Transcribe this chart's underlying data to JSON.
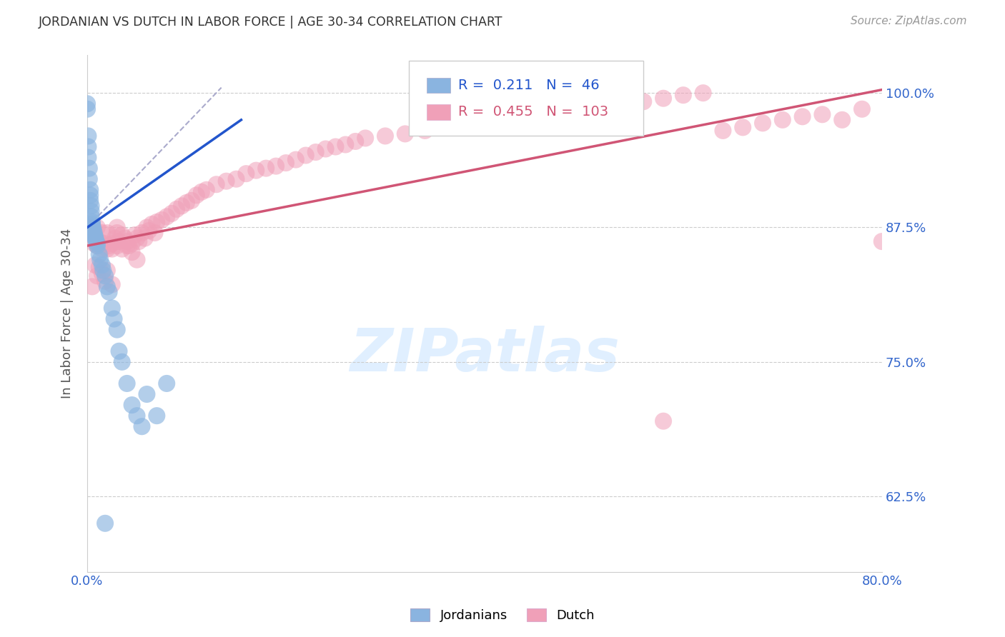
{
  "title": "JORDANIAN VS DUTCH IN LABOR FORCE | AGE 30-34 CORRELATION CHART",
  "source": "Source: ZipAtlas.com",
  "ylabel": "In Labor Force | Age 30-34",
  "legend_jordanians": "Jordanians",
  "legend_dutch": "Dutch",
  "r_jordanians": 0.211,
  "n_jordanians": 46,
  "r_dutch": 0.455,
  "n_dutch": 103,
  "color_jordanians": "#8ab4e0",
  "color_dutch": "#f0a0b8",
  "color_blue_line": "#2255cc",
  "color_pink_line": "#d05575",
  "color_dashed": "#aaaacc",
  "color_grid": "#cccccc",
  "color_title": "#333333",
  "color_source": "#999999",
  "color_axis_labels": "#3366cc",
  "color_ylabel": "#555555",
  "background_color": "#ffffff",
  "watermark_color": "#ddeeff",
  "x_min": 0.0,
  "x_max": 0.8,
  "y_min": 0.555,
  "y_max": 1.035,
  "y_ticks": [
    0.625,
    0.75,
    0.875,
    1.0
  ],
  "y_tick_labels": [
    "62.5%",
    "75.0%",
    "87.5%",
    "100.0%"
  ],
  "x_ticks": [
    0.0,
    0.1,
    0.2,
    0.3,
    0.4,
    0.5,
    0.6,
    0.7,
    0.8
  ],
  "x_tick_labels": [
    "0.0%",
    "",
    "",
    "",
    "",
    "",
    "",
    "",
    "80.0%"
  ],
  "blue_line_x": [
    0.0,
    0.155
  ],
  "blue_line_y": [
    0.875,
    0.975
  ],
  "pink_line_x": [
    0.0,
    0.8
  ],
  "pink_line_y": [
    0.858,
    1.003
  ],
  "dash_line_x": [
    0.0,
    0.135
  ],
  "dash_line_y": [
    0.875,
    1.005
  ],
  "jx": [
    0.0,
    0.0,
    0.001,
    0.001,
    0.001,
    0.002,
    0.002,
    0.003,
    0.003,
    0.003,
    0.004,
    0.004,
    0.004,
    0.005,
    0.005,
    0.005,
    0.005,
    0.006,
    0.006,
    0.007,
    0.007,
    0.008,
    0.008,
    0.009,
    0.01,
    0.01,
    0.012,
    0.013,
    0.015,
    0.016,
    0.018,
    0.02,
    0.022,
    0.025,
    0.027,
    0.03,
    0.032,
    0.035,
    0.04,
    0.045,
    0.05,
    0.055,
    0.06,
    0.07,
    0.08,
    0.018
  ],
  "jy": [
    0.99,
    0.985,
    0.96,
    0.95,
    0.94,
    0.93,
    0.92,
    0.91,
    0.905,
    0.9,
    0.895,
    0.89,
    0.885,
    0.88,
    0.878,
    0.876,
    0.875,
    0.874,
    0.872,
    0.87,
    0.868,
    0.866,
    0.865,
    0.862,
    0.86,
    0.858,
    0.85,
    0.845,
    0.84,
    0.835,
    0.83,
    0.82,
    0.815,
    0.8,
    0.79,
    0.78,
    0.76,
    0.75,
    0.73,
    0.71,
    0.7,
    0.69,
    0.72,
    0.7,
    0.73,
    0.6
  ],
  "dx": [
    0.0,
    0.002,
    0.004,
    0.005,
    0.006,
    0.007,
    0.008,
    0.01,
    0.01,
    0.012,
    0.015,
    0.015,
    0.018,
    0.02,
    0.02,
    0.022,
    0.025,
    0.025,
    0.028,
    0.03,
    0.03,
    0.032,
    0.035,
    0.038,
    0.04,
    0.042,
    0.045,
    0.048,
    0.05,
    0.052,
    0.055,
    0.058,
    0.06,
    0.062,
    0.065,
    0.068,
    0.07,
    0.075,
    0.08,
    0.085,
    0.09,
    0.095,
    0.1,
    0.105,
    0.11,
    0.115,
    0.12,
    0.13,
    0.14,
    0.15,
    0.16,
    0.17,
    0.18,
    0.19,
    0.2,
    0.21,
    0.22,
    0.23,
    0.24,
    0.25,
    0.26,
    0.27,
    0.28,
    0.3,
    0.32,
    0.34,
    0.36,
    0.38,
    0.4,
    0.42,
    0.44,
    0.46,
    0.48,
    0.5,
    0.52,
    0.54,
    0.56,
    0.58,
    0.6,
    0.62,
    0.64,
    0.66,
    0.68,
    0.7,
    0.72,
    0.74,
    0.76,
    0.78,
    0.8,
    0.005,
    0.008,
    0.01,
    0.012,
    0.015,
    0.018,
    0.02,
    0.025,
    0.58,
    0.03,
    0.035,
    0.04,
    0.045,
    0.05
  ],
  "dy": [
    0.875,
    0.87,
    0.875,
    0.868,
    0.875,
    0.86,
    0.865,
    0.875,
    0.858,
    0.862,
    0.87,
    0.855,
    0.86,
    0.87,
    0.855,
    0.858,
    0.86,
    0.855,
    0.865,
    0.858,
    0.87,
    0.862,
    0.855,
    0.865,
    0.862,
    0.858,
    0.86,
    0.868,
    0.865,
    0.862,
    0.87,
    0.865,
    0.875,
    0.872,
    0.878,
    0.87,
    0.88,
    0.882,
    0.885,
    0.888,
    0.892,
    0.895,
    0.898,
    0.9,
    0.905,
    0.908,
    0.91,
    0.915,
    0.918,
    0.92,
    0.925,
    0.928,
    0.93,
    0.932,
    0.935,
    0.938,
    0.942,
    0.945,
    0.948,
    0.95,
    0.952,
    0.955,
    0.958,
    0.96,
    0.962,
    0.965,
    0.968,
    0.97,
    0.972,
    0.975,
    0.978,
    0.98,
    0.982,
    0.985,
    0.988,
    0.99,
    0.992,
    0.995,
    0.998,
    1.0,
    0.965,
    0.968,
    0.972,
    0.975,
    0.978,
    0.98,
    0.975,
    0.985,
    0.862,
    0.82,
    0.84,
    0.83,
    0.838,
    0.832,
    0.825,
    0.835,
    0.822,
    0.695,
    0.875,
    0.868,
    0.858,
    0.852,
    0.845
  ]
}
